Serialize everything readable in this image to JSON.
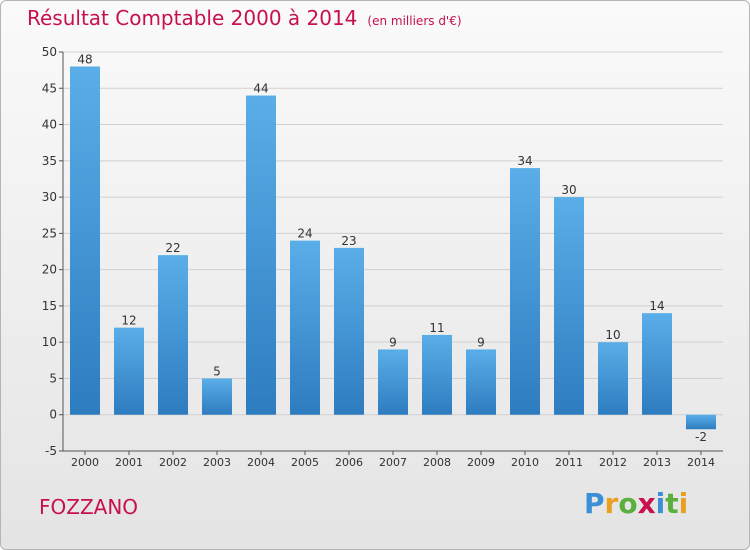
{
  "chart_data": {
    "type": "bar",
    "title": "Résultat Comptable 2000 à 2014",
    "subtitle": "(en milliers d'€)",
    "categories": [
      "2000",
      "2001",
      "2002",
      "2003",
      "2004",
      "2005",
      "2006",
      "2007",
      "2008",
      "2009",
      "2010",
      "2011",
      "2012",
      "2013",
      "2014"
    ],
    "values": [
      48,
      12,
      22,
      5,
      44,
      24,
      23,
      9,
      11,
      9,
      34,
      30,
      10,
      14,
      -2
    ],
    "ylim": [
      -5,
      50
    ],
    "yticks": [
      -5,
      0,
      5,
      10,
      15,
      20,
      25,
      30,
      35,
      40,
      45,
      50
    ],
    "grid": true,
    "xlabel": "",
    "ylabel": "",
    "colors": {
      "bar_top": "#5aaee8",
      "bar_bottom": "#2e7cc0",
      "title": "#c8104f"
    }
  },
  "footer": {
    "commune": "FOZZANO",
    "brand": "Proxiti",
    "brand_letters": [
      {
        "ch": "P",
        "color": "#3a8fd6"
      },
      {
        "ch": "r",
        "color": "#e8a020"
      },
      {
        "ch": "o",
        "color": "#5ab03c"
      },
      {
        "ch": "x",
        "color": "#c8104f"
      },
      {
        "ch": "i",
        "color": "#3a8fd6"
      },
      {
        "ch": "t",
        "color": "#5ab03c"
      },
      {
        "ch": "i",
        "color": "#e8a020"
      }
    ]
  }
}
